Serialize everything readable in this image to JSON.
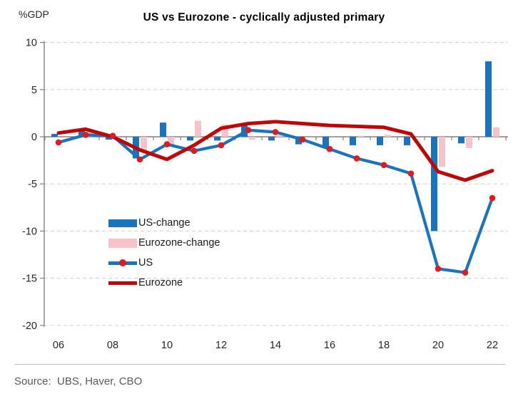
{
  "header": {
    "unit_label": "%GDP",
    "title": "US vs Eurozone - cyclically adjusted primary"
  },
  "footer": {
    "source": "Source:  UBS, Haver, CBO"
  },
  "colors": {
    "us_blue": "#1874BE",
    "ez_pink": "#F7C3CB",
    "ez_red": "#C00505",
    "marker_red": "#E31A1C",
    "grid": "#D6D6D6",
    "axis": "#808080",
    "tick_text": "#262626"
  },
  "chart_data": {
    "type": "bar+line combo",
    "title": "US vs Eurozone - cyclically adjusted primary",
    "ylabel": "%GDP",
    "ylim": [
      -20,
      10
    ],
    "y_ticks": [
      10,
      5,
      0,
      -5,
      -10,
      -15,
      -20
    ],
    "grid": "dashed horizontal",
    "years": [
      2006,
      2007,
      2008,
      2009,
      2010,
      2011,
      2012,
      2013,
      2014,
      2015,
      2016,
      2017,
      2018,
      2019,
      2020,
      2021,
      2022
    ],
    "x_axis_labels": [
      "06",
      "08",
      "10",
      "12",
      "14",
      "16",
      "18",
      "20",
      "22"
    ],
    "x_label_every": 2,
    "legend_position": "inside-center-left",
    "series": [
      {
        "name": "US-change",
        "type": "bar",
        "color_key": "us_blue",
        "values": [
          0.3,
          0.7,
          -0.3,
          -2.3,
          1.5,
          -0.4,
          -0.4,
          1.4,
          -0.4,
          -0.8,
          -1.2,
          -0.9,
          -0.9,
          -0.9,
          -10.0,
          -0.7,
          8.0
        ]
      },
      {
        "name": "Eurozone-change",
        "type": "bar",
        "color_key": "ez_pink",
        "values": [
          0,
          0.8,
          -0.3,
          -1.6,
          -0.8,
          1.7,
          1.3,
          -0.3,
          0.2,
          0,
          0,
          0.1,
          0.2,
          0,
          -3.2,
          -1.2,
          1.0
        ]
      },
      {
        "name": "US",
        "type": "line",
        "marker": "red-dot",
        "color_key": "us_blue",
        "values": [
          -0.6,
          0.2,
          0.1,
          -2.4,
          -0.8,
          -1.5,
          -0.9,
          0.7,
          0.5,
          -0.3,
          -1.3,
          -2.3,
          -3.0,
          -3.9,
          -14.0,
          -14.4,
          -6.5
        ]
      },
      {
        "name": "Eurozone",
        "type": "line",
        "color_key": "ez_red",
        "values": [
          0.4,
          0.8,
          0.0,
          -1.4,
          -2.4,
          -0.9,
          0.9,
          1.4,
          1.6,
          1.4,
          1.2,
          1.1,
          1.0,
          0.3,
          -3.7,
          -4.6,
          -3.6
        ]
      }
    ]
  }
}
